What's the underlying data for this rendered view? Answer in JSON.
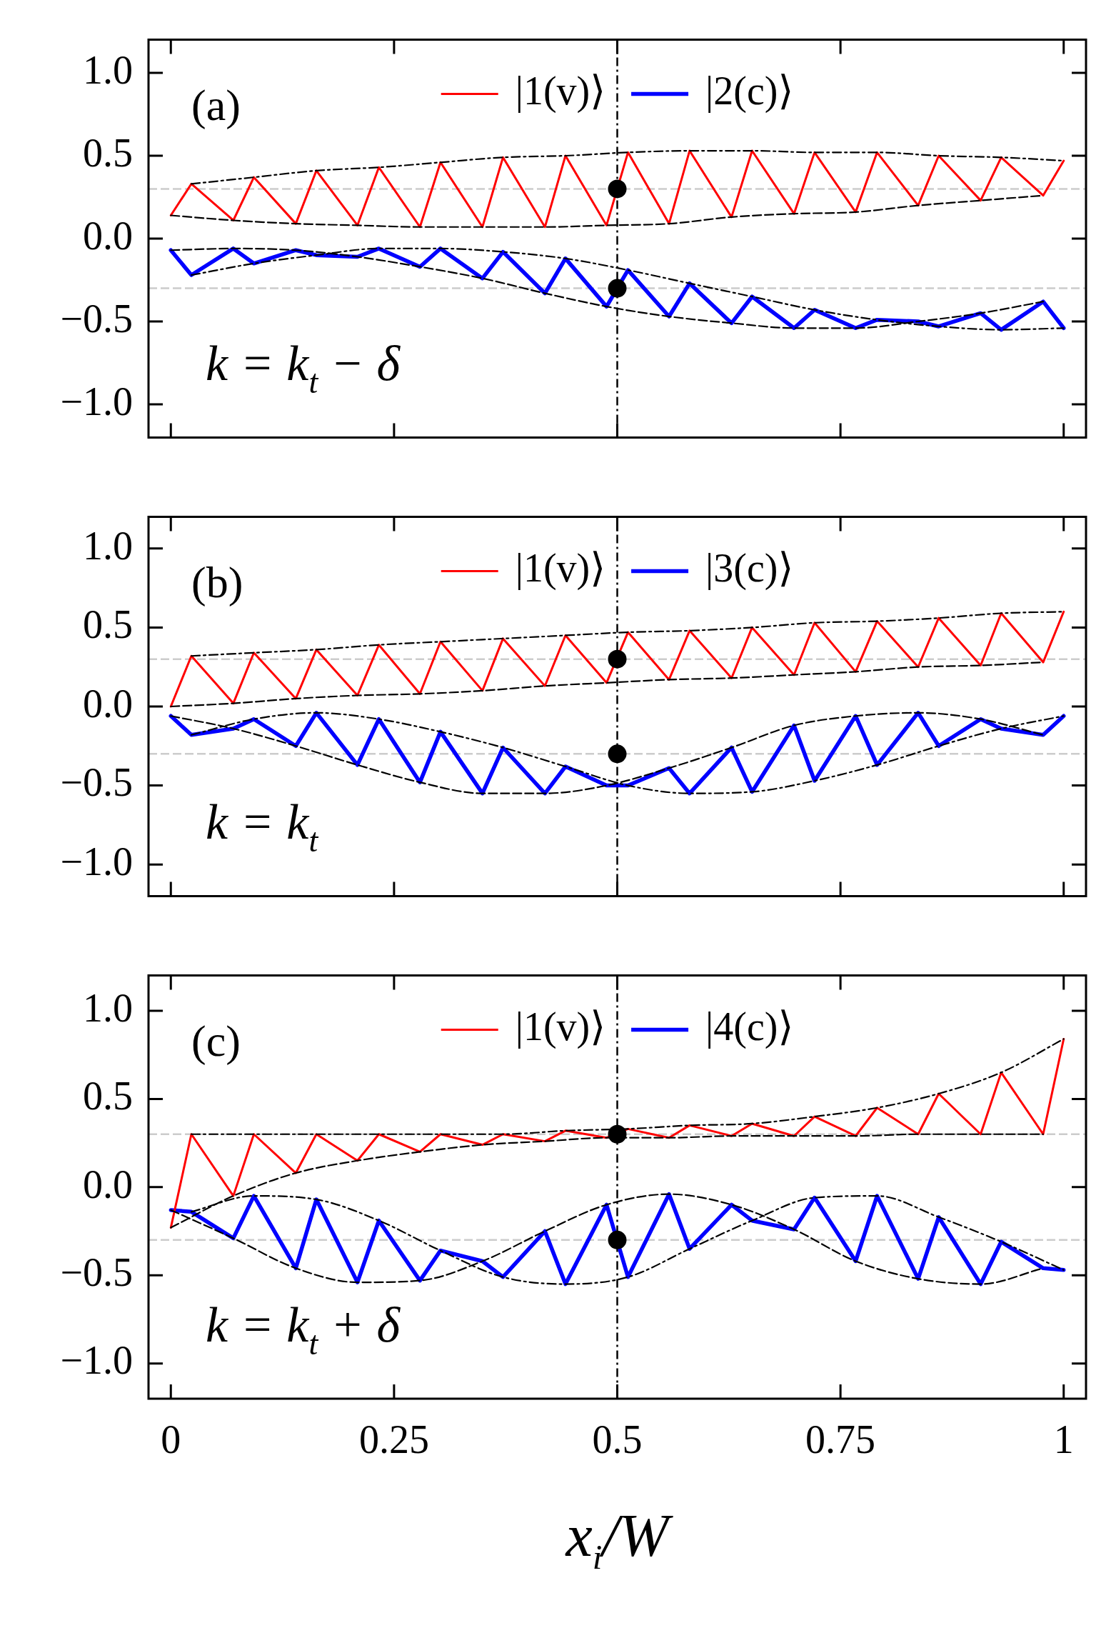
{
  "chart_data": [
    {
      "type": "line",
      "xlim": [
        -0.025,
        1.025
      ],
      "xticks": [
        0,
        0.25,
        0.5,
        0.75,
        1
      ],
      "ylim": [
        -1.2,
        1.2
      ],
      "yticks": [
        {
          "value": -1,
          "label": "−1.0"
        },
        {
          "value": -0.5,
          "label": "−0.5"
        },
        {
          "value": 0,
          "label": "0.0"
        },
        {
          "value": 0.5,
          "label": "0.5"
        },
        {
          "value": 1,
          "label": "1.0"
        }
      ],
      "tick_labels": "y",
      "legend": "top",
      "annotations": [
        "(a)",
        "k = k$_{t}$ − δ"
      ],
      "ref_lines": [
        {
          "axis": "y",
          "value": 0.3,
          "color": "#cccccc",
          "line_style": "dashed"
        },
        {
          "axis": "y",
          "value": -0.3,
          "color": "#cccccc",
          "line_style": "dashed"
        },
        {
          "axis": "x",
          "value": 0.5,
          "color": "#000000",
          "line_style": "dashdot"
        }
      ],
      "x": [
        0,
        0.023,
        0.07,
        0.093,
        0.14,
        0.163,
        0.209,
        0.233,
        0.279,
        0.302,
        0.349,
        0.372,
        0.419,
        0.442,
        0.488,
        0.512,
        0.558,
        0.581,
        0.628,
        0.651,
        0.698,
        0.721,
        0.767,
        0.791,
        0.837,
        0.86,
        0.907,
        0.93,
        0.977,
        1
      ],
      "series": [
        {
          "name": "|1(v)⟩",
          "color": "#ff0000",
          "marker": "none",
          "line_style": "solid",
          "values": [
            0.14,
            0.33,
            0.11,
            0.37,
            0.09,
            0.41,
            0.08,
            0.43,
            0.07,
            0.46,
            0.07,
            0.49,
            0.07,
            0.5,
            0.08,
            0.52,
            0.09,
            0.53,
            0.13,
            0.53,
            0.15,
            0.52,
            0.16,
            0.52,
            0.2,
            0.5,
            0.23,
            0.49,
            0.26,
            0.47
          ]
        },
        {
          "name": "|2(c)⟩",
          "color": "#0000ff",
          "marker": "none",
          "line_style": "solid",
          "values": [
            -0.07,
            -0.22,
            -0.06,
            -0.15,
            -0.07,
            -0.1,
            -0.11,
            -0.06,
            -0.17,
            -0.06,
            -0.24,
            -0.08,
            -0.33,
            -0.12,
            -0.41,
            -0.19,
            -0.47,
            -0.27,
            -0.51,
            -0.35,
            -0.54,
            -0.43,
            -0.54,
            -0.49,
            -0.5,
            -0.53,
            -0.45,
            -0.55,
            -0.38,
            -0.54
          ]
        },
        {
          "color": "#000000",
          "marker": "none",
          "line_style": "dashed",
          "x": [
            0,
            0.07,
            0.14,
            0.209,
            0.279,
            0.349,
            0.419,
            0.488,
            0.558,
            0.628,
            0.698,
            0.767,
            0.837,
            0.907,
            0.977
          ],
          "values": [
            0.14,
            0.11,
            0.09,
            0.08,
            0.07,
            0.07,
            0.07,
            0.08,
            0.09,
            0.13,
            0.15,
            0.16,
            0.2,
            0.23,
            0.26
          ]
        },
        {
          "color": "#000000",
          "marker": "none",
          "line_style": "dashdot",
          "x": [
            0.023,
            0.093,
            0.163,
            0.233,
            0.302,
            0.372,
            0.442,
            0.512,
            0.581,
            0.651,
            0.721,
            0.791,
            0.86,
            0.93,
            1
          ],
          "values": [
            0.33,
            0.37,
            0.41,
            0.43,
            0.46,
            0.49,
            0.5,
            0.52,
            0.53,
            0.53,
            0.52,
            0.52,
            0.5,
            0.49,
            0.47
          ]
        },
        {
          "color": "#000000",
          "marker": "none",
          "line_style": "dashed",
          "x": [
            0,
            0.07,
            0.14,
            0.209,
            0.279,
            0.349,
            0.419,
            0.488,
            0.558,
            0.628,
            0.698,
            0.767,
            0.837,
            0.907,
            0.977
          ],
          "values": [
            -0.07,
            -0.06,
            -0.07,
            -0.11,
            -0.17,
            -0.24,
            -0.33,
            -0.41,
            -0.47,
            -0.51,
            -0.54,
            -0.54,
            -0.5,
            -0.45,
            -0.38
          ]
        },
        {
          "color": "#000000",
          "marker": "none",
          "line_style": "dashdot",
          "x": [
            0.023,
            0.093,
            0.163,
            0.233,
            0.302,
            0.372,
            0.442,
            0.512,
            0.581,
            0.651,
            0.721,
            0.791,
            0.86,
            0.93,
            1
          ],
          "values": [
            -0.22,
            -0.15,
            -0.1,
            -0.06,
            -0.06,
            -0.08,
            -0.12,
            -0.19,
            -0.27,
            -0.35,
            -0.43,
            -0.49,
            -0.53,
            -0.55,
            -0.54
          ]
        },
        {
          "type": "scatter",
          "color": "#000000",
          "marker": "circle",
          "x": [
            0.5,
            0.5
          ],
          "values": [
            0.3,
            -0.3
          ]
        }
      ]
    },
    {
      "type": "line",
      "xlim": [
        -0.025,
        1.025
      ],
      "xticks": [
        0,
        0.25,
        0.5,
        0.75,
        1
      ],
      "ylim": [
        -1.2,
        1.2
      ],
      "yticks": [
        {
          "value": -1,
          "label": "−1.0"
        },
        {
          "value": -0.5,
          "label": "−0.5"
        },
        {
          "value": 0,
          "label": "0.0"
        },
        {
          "value": 0.5,
          "label": "0.5"
        },
        {
          "value": 1,
          "label": "1.0"
        }
      ],
      "tick_labels": "y",
      "legend": "top",
      "annotations": [
        "(b)",
        "k = k$_{t}$"
      ],
      "ref_lines": [
        {
          "axis": "y",
          "value": 0.3,
          "color": "#cccccc",
          "line_style": "dashed"
        },
        {
          "axis": "y",
          "value": -0.3,
          "color": "#cccccc",
          "line_style": "dashed"
        },
        {
          "axis": "x",
          "value": 0.5,
          "color": "#000000",
          "line_style": "dashdot"
        }
      ],
      "x": [
        0,
        0.023,
        0.07,
        0.093,
        0.14,
        0.163,
        0.209,
        0.233,
        0.279,
        0.302,
        0.349,
        0.372,
        0.419,
        0.442,
        0.488,
        0.512,
        0.558,
        0.581,
        0.628,
        0.651,
        0.698,
        0.721,
        0.767,
        0.791,
        0.837,
        0.86,
        0.907,
        0.93,
        0.977,
        1
      ],
      "series": [
        {
          "name": "|1(v)⟩",
          "color": "#ff0000",
          "marker": "none",
          "line_style": "solid",
          "values": [
            0.0,
            0.32,
            0.02,
            0.34,
            0.05,
            0.36,
            0.07,
            0.39,
            0.08,
            0.41,
            0.1,
            0.43,
            0.13,
            0.45,
            0.15,
            0.47,
            0.17,
            0.48,
            0.18,
            0.5,
            0.2,
            0.53,
            0.22,
            0.54,
            0.25,
            0.56,
            0.26,
            0.59,
            0.28,
            0.6
          ]
        },
        {
          "name": "|3(c)⟩",
          "color": "#0000ff",
          "marker": "none",
          "line_style": "solid",
          "values": [
            -0.06,
            -0.18,
            -0.14,
            -0.08,
            -0.25,
            -0.04,
            -0.37,
            -0.08,
            -0.48,
            -0.16,
            -0.55,
            -0.26,
            -0.55,
            -0.38,
            -0.5,
            -0.5,
            -0.39,
            -0.55,
            -0.26,
            -0.54,
            -0.12,
            -0.47,
            -0.06,
            -0.37,
            -0.04,
            -0.25,
            -0.08,
            -0.14,
            -0.18,
            -0.06
          ]
        },
        {
          "color": "#000000",
          "marker": "none",
          "line_style": "dashed",
          "x": [
            0,
            0.07,
            0.14,
            0.209,
            0.279,
            0.349,
            0.419,
            0.488,
            0.558,
            0.628,
            0.698,
            0.767,
            0.837,
            0.907,
            0.977
          ],
          "values": [
            0.0,
            0.02,
            0.05,
            0.07,
            0.08,
            0.1,
            0.13,
            0.15,
            0.17,
            0.18,
            0.2,
            0.22,
            0.25,
            0.26,
            0.28
          ]
        },
        {
          "color": "#000000",
          "marker": "none",
          "line_style": "dashdot",
          "x": [
            0.023,
            0.093,
            0.163,
            0.233,
            0.302,
            0.372,
            0.442,
            0.512,
            0.581,
            0.651,
            0.721,
            0.791,
            0.86,
            0.93,
            1
          ],
          "values": [
            0.32,
            0.34,
            0.36,
            0.39,
            0.41,
            0.43,
            0.45,
            0.47,
            0.48,
            0.5,
            0.53,
            0.54,
            0.56,
            0.59,
            0.6
          ]
        },
        {
          "color": "#000000",
          "marker": "none",
          "line_style": "dashed",
          "x": [
            0,
            0.07,
            0.14,
            0.209,
            0.279,
            0.349,
            0.419,
            0.488,
            0.558,
            0.628,
            0.698,
            0.767,
            0.837,
            0.907,
            0.977
          ],
          "values": [
            -0.06,
            -0.14,
            -0.25,
            -0.37,
            -0.48,
            -0.55,
            -0.55,
            -0.5,
            -0.39,
            -0.26,
            -0.12,
            -0.06,
            -0.04,
            -0.08,
            -0.18
          ]
        },
        {
          "color": "#000000",
          "marker": "none",
          "line_style": "dashdot",
          "x": [
            0.023,
            0.093,
            0.163,
            0.233,
            0.302,
            0.372,
            0.442,
            0.512,
            0.581,
            0.651,
            0.721,
            0.791,
            0.86,
            0.93,
            1
          ],
          "values": [
            -0.18,
            -0.08,
            -0.04,
            -0.08,
            -0.16,
            -0.26,
            -0.38,
            -0.5,
            -0.55,
            -0.54,
            -0.47,
            -0.37,
            -0.25,
            -0.14,
            -0.06
          ]
        },
        {
          "type": "scatter",
          "color": "#000000",
          "marker": "circle",
          "x": [
            0.5,
            0.5
          ],
          "values": [
            0.3,
            -0.3
          ]
        }
      ]
    },
    {
      "type": "line",
      "xlim": [
        -0.025,
        1.025
      ],
      "xticks": [
        0,
        0.25,
        0.5,
        0.75,
        1
      ],
      "ylim": [
        -1.2,
        1.2
      ],
      "yticks": [
        {
          "value": -1,
          "label": "−1.0"
        },
        {
          "value": -0.5,
          "label": "−0.5"
        },
        {
          "value": 0,
          "label": "0.0"
        },
        {
          "value": 0.5,
          "label": "0.5"
        },
        {
          "value": 1,
          "label": "1.0"
        }
      ],
      "legend": "top",
      "xlabel": "x$_{i}$/W",
      "annotations": [
        "(c)",
        "k = k$_{t}$ + δ"
      ],
      "ref_lines": [
        {
          "axis": "y",
          "value": 0.3,
          "color": "#cccccc",
          "line_style": "dashed"
        },
        {
          "axis": "y",
          "value": -0.3,
          "color": "#cccccc",
          "line_style": "dashed"
        },
        {
          "axis": "x",
          "value": 0.5,
          "color": "#000000",
          "line_style": "dashdot"
        }
      ],
      "x": [
        0,
        0.023,
        0.07,
        0.093,
        0.14,
        0.163,
        0.209,
        0.233,
        0.279,
        0.302,
        0.349,
        0.372,
        0.419,
        0.442,
        0.488,
        0.512,
        0.558,
        0.581,
        0.628,
        0.651,
        0.698,
        0.721,
        0.767,
        0.791,
        0.837,
        0.86,
        0.907,
        0.93,
        0.977,
        1
      ],
      "series": [
        {
          "name": "|1(v)⟩",
          "color": "#ff0000",
          "marker": "none",
          "line_style": "solid",
          "values": [
            -0.23,
            0.3,
            -0.05,
            0.3,
            0.08,
            0.3,
            0.15,
            0.3,
            0.2,
            0.3,
            0.24,
            0.3,
            0.26,
            0.32,
            0.28,
            0.33,
            0.28,
            0.35,
            0.29,
            0.36,
            0.29,
            0.4,
            0.29,
            0.45,
            0.3,
            0.53,
            0.3,
            0.65,
            0.3,
            0.84
          ]
        },
        {
          "name": "|4(c)⟩",
          "color": "#0000ff",
          "marker": "none",
          "line_style": "solid",
          "values": [
            -0.13,
            -0.14,
            -0.29,
            -0.05,
            -0.46,
            -0.07,
            -0.54,
            -0.19,
            -0.53,
            -0.36,
            -0.42,
            -0.51,
            -0.25,
            -0.55,
            -0.1,
            -0.51,
            -0.04,
            -0.35,
            -0.1,
            -0.19,
            -0.24,
            -0.06,
            -0.42,
            -0.05,
            -0.52,
            -0.17,
            -0.55,
            -0.31,
            -0.46,
            -0.47
          ]
        },
        {
          "color": "#000000",
          "marker": "none",
          "line_style": "dashed",
          "x": [
            0,
            0.07,
            0.14,
            0.209,
            0.279,
            0.349,
            0.419,
            0.488,
            0.558,
            0.628,
            0.698,
            0.767,
            0.837,
            0.907,
            0.977
          ],
          "values": [
            -0.23,
            -0.05,
            0.08,
            0.15,
            0.2,
            0.24,
            0.26,
            0.28,
            0.28,
            0.29,
            0.29,
            0.29,
            0.3,
            0.3,
            0.3
          ]
        },
        {
          "color": "#000000",
          "marker": "none",
          "line_style": "dashdot",
          "x": [
            0.023,
            0.093,
            0.163,
            0.233,
            0.302,
            0.372,
            0.442,
            0.512,
            0.581,
            0.651,
            0.721,
            0.791,
            0.86,
            0.93,
            1
          ],
          "values": [
            0.3,
            0.3,
            0.3,
            0.3,
            0.3,
            0.3,
            0.32,
            0.33,
            0.35,
            0.36,
            0.4,
            0.45,
            0.53,
            0.65,
            0.84
          ]
        },
        {
          "color": "#000000",
          "marker": "none",
          "line_style": "dashed",
          "x": [
            0,
            0.07,
            0.14,
            0.209,
            0.279,
            0.349,
            0.419,
            0.488,
            0.558,
            0.628,
            0.698,
            0.767,
            0.837,
            0.907,
            0.977
          ],
          "values": [
            -0.13,
            -0.29,
            -0.46,
            -0.54,
            -0.53,
            -0.42,
            -0.25,
            -0.1,
            -0.04,
            -0.1,
            -0.24,
            -0.42,
            -0.52,
            -0.55,
            -0.46
          ]
        },
        {
          "color": "#000000",
          "marker": "none",
          "line_style": "dashdot",
          "x": [
            0.023,
            0.093,
            0.163,
            0.233,
            0.302,
            0.372,
            0.442,
            0.512,
            0.581,
            0.651,
            0.721,
            0.791,
            0.86,
            0.93,
            1
          ],
          "values": [
            -0.14,
            -0.05,
            -0.07,
            -0.19,
            -0.36,
            -0.51,
            -0.55,
            -0.51,
            -0.35,
            -0.19,
            -0.06,
            -0.05,
            -0.17,
            -0.31,
            -0.47
          ]
        },
        {
          "type": "scatter",
          "color": "#000000",
          "marker": "circle",
          "x": [
            0.5,
            0.5
          ],
          "values": [
            0.3,
            -0.3
          ]
        }
      ]
    }
  ]
}
